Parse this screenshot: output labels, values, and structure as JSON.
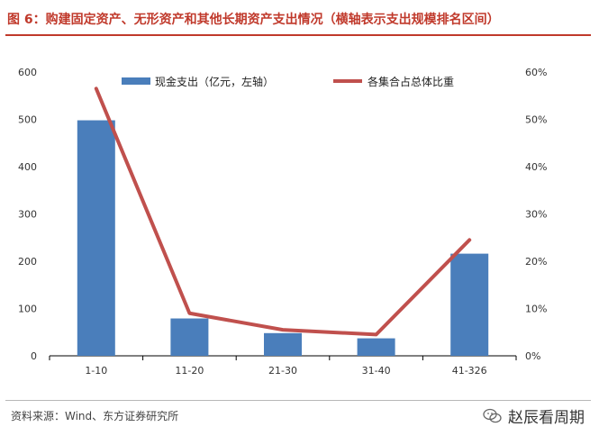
{
  "header": {
    "title": "图 6：购建固定资产、无形资产和其他长期资产支出情况（横轴表示支出规模排名区间）"
  },
  "footer": {
    "source": "资料来源：Wind、东方证券研究所",
    "watermark_icon": "wechat-icon",
    "watermark_text": "赵辰看周期"
  },
  "colors": {
    "title": "#c0392b",
    "bar": "#4a7ebb",
    "line": "#c0504d"
  },
  "chart_data": {
    "type": "bar+line",
    "categories": [
      "1-10",
      "11-20",
      "21-30",
      "31-40",
      "41-326"
    ],
    "series": [
      {
        "name": "现金支出（亿元，左轴）",
        "type": "bar",
        "axis": "left",
        "values": [
          498,
          79,
          48,
          37,
          216
        ]
      },
      {
        "name": "各集合占总体比重",
        "type": "line",
        "axis": "right",
        "values": [
          0.565,
          0.09,
          0.055,
          0.045,
          0.245
        ]
      }
    ],
    "left_axis": {
      "ylim": [
        0,
        600
      ],
      "ticks": [
        "0",
        "100",
        "200",
        "300",
        "400",
        "500",
        "600"
      ]
    },
    "right_axis": {
      "ylim": [
        0,
        0.6
      ],
      "ticks": [
        "0%",
        "10%",
        "20%",
        "30%",
        "40%",
        "50%",
        "60%"
      ]
    },
    "legend": "top",
    "grid": false
  }
}
